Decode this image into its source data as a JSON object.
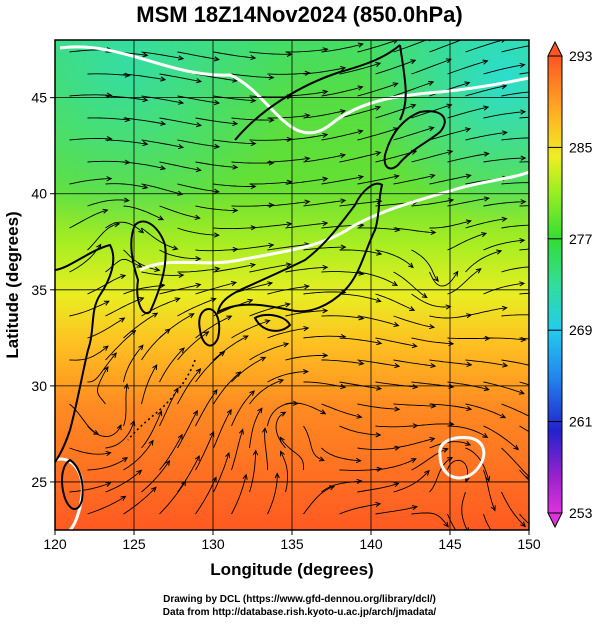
{
  "title": "MSM 18Z14Nov2024 (850.0hPa)",
  "map": {
    "lon_range": [
      120,
      150
    ],
    "lat_range": [
      22.5,
      48
    ],
    "x_ticks": [
      "120",
      "125",
      "130",
      "135",
      "140",
      "145",
      "150"
    ],
    "y_ticks": [
      "25",
      "30",
      "35",
      "40",
      "45"
    ],
    "x_label": "Longitude (degrees)",
    "y_label": "Latitude  (degrees)",
    "contour_color": "#ffffff",
    "coast_color": "#000000",
    "streamline_color": "#000000"
  },
  "colorbar": {
    "min": 253,
    "max": 293,
    "tick_labels": [
      "293",
      "285",
      "277",
      "269",
      "261",
      "253"
    ],
    "colors": [
      "#dd33dd",
      "#6622cc",
      "#2233cc",
      "#2299ee",
      "#22ccee",
      "#33dd99",
      "#33dd33",
      "#99ee22",
      "#eeee22",
      "#ffbb22",
      "#ff8822",
      "#ff5522"
    ]
  },
  "credits": {
    "line1": "Drawing by DCL (https://www.gfd-dennou.org/library/dcl/)",
    "line2": "Data from http://database.rish.kyoto-u.ac.jp/arch/jmadata/"
  }
}
